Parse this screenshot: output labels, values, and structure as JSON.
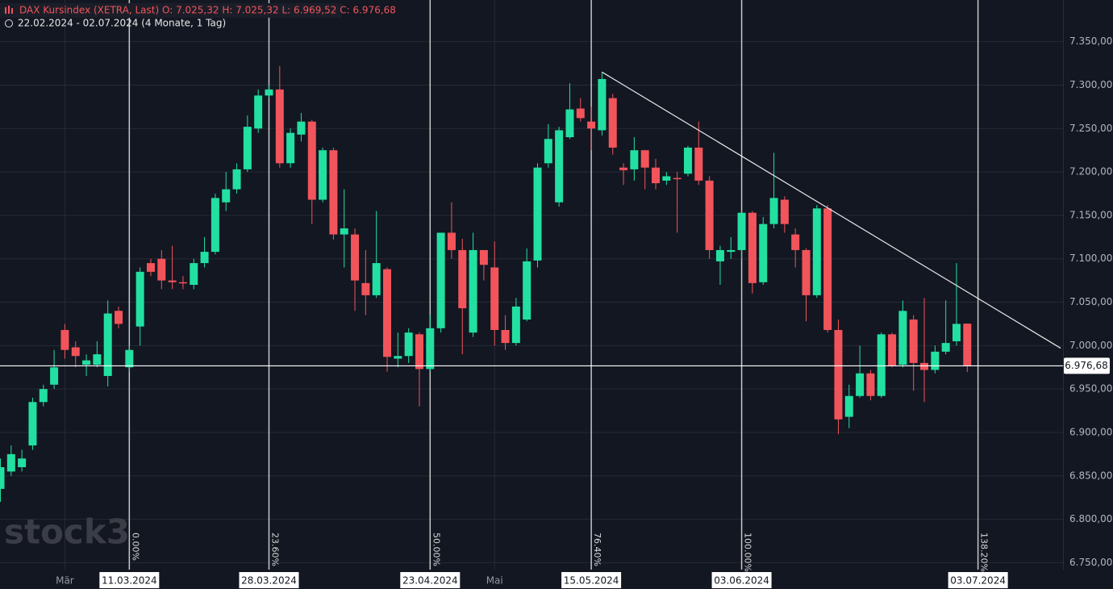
{
  "chart_data": {
    "type": "candlestick",
    "title": "DAX Kursindex (XETRA, Last)  O: 7.025,32  H: 7.025,32  L: 6.969,52  C: 6.976,68",
    "subtitle": "22.02.2024 - 02.07.2024  (4 Monate, 1 Tag)",
    "watermark": "stock3",
    "categories": [
      null,
      null,
      null,
      null,
      null,
      null,
      "Mär",
      null,
      null,
      null,
      null,
      null,
      "11.03.2024",
      null,
      null,
      null,
      null,
      null,
      null,
      null,
      null,
      null,
      null,
      null,
      null,
      "28.03.2024",
      null,
      null,
      null,
      null,
      null,
      null,
      null,
      null,
      null,
      null,
      null,
      null,
      null,
      null,
      "23.04.2024",
      null,
      null,
      null,
      null,
      null,
      "Mai",
      null,
      null,
      null,
      null,
      null,
      null,
      null,
      null,
      "15.05.2024",
      null,
      null,
      null,
      null,
      null,
      null,
      null,
      null,
      null,
      null,
      null,
      null,
      null,
      "03.06.2024",
      null,
      null,
      null,
      null,
      null,
      null,
      null,
      null,
      null,
      null,
      null,
      null,
      null,
      null,
      null,
      null,
      null,
      null,
      null,
      null,
      null,
      "03.07.2024"
    ],
    "fib_labels": [
      null,
      null,
      null,
      null,
      null,
      null,
      null,
      null,
      null,
      null,
      null,
      null,
      "0.00%",
      null,
      null,
      null,
      null,
      null,
      null,
      null,
      null,
      null,
      null,
      null,
      null,
      "23.60%",
      null,
      null,
      null,
      null,
      null,
      null,
      null,
      null,
      null,
      null,
      null,
      null,
      null,
      null,
      "50.00%",
      null,
      null,
      null,
      null,
      null,
      null,
      null,
      null,
      null,
      null,
      null,
      null,
      null,
      null,
      "76.40%",
      null,
      null,
      null,
      null,
      null,
      null,
      null,
      null,
      null,
      null,
      null,
      null,
      null,
      "100.00%",
      null,
      null,
      null,
      null,
      null,
      null,
      null,
      null,
      null,
      null,
      null,
      null,
      null,
      null,
      null,
      null,
      null,
      null,
      null,
      null,
      null,
      "138.20%"
    ],
    "open": [
      6835,
      6855,
      6860,
      6885,
      6935,
      6955,
      7018,
      6998,
      6978,
      6978,
      6965,
      7040,
      6975,
      7022,
      7095,
      7100,
      7075,
      7073,
      7070,
      7095,
      7108,
      7165,
      7180,
      7203,
      7250,
      7288,
      7295,
      7210,
      7243,
      7258,
      7168,
      7225,
      7128,
      7128,
      7072,
      7058,
      7088,
      6985,
      6988,
      7013,
      6973,
      7020,
      7130,
      7110,
      7015,
      7110,
      7090,
      7018,
      7003,
      7030,
      7098,
      7210,
      7165,
      7240,
      7273,
      7258,
      7248,
      7285,
      7205,
      7203,
      7225,
      7205,
      7190,
      7193,
      7198,
      7228,
      7190,
      7097,
      7108,
      7110,
      7153,
      7073,
      7140,
      7168,
      7128,
      7110,
      7058,
      7158,
      7018,
      6918,
      6942,
      6968,
      6942,
      7013,
      6978,
      7030,
      6980,
      6972,
      6993,
      7005,
      7025.32,
      null
    ],
    "high": [
      6870,
      6885,
      6880,
      6940,
      6955,
      6995,
      7025,
      7005,
      6990,
      7005,
      7052,
      7045,
      7000,
      7090,
      7100,
      7110,
      7115,
      7080,
      7100,
      7125,
      7175,
      7200,
      7210,
      7265,
      7295,
      7300,
      7322,
      7250,
      7268,
      7260,
      7228,
      7228,
      7180,
      7135,
      7110,
      7155,
      7090,
      7015,
      7020,
      7015,
      7035,
      7130,
      7165,
      7123,
      7130,
      7110,
      7120,
      7035,
      7055,
      7112,
      7210,
      7255,
      7252,
      7302,
      7285,
      7275,
      7315,
      7290,
      7210,
      7240,
      7225,
      7215,
      7200,
      7200,
      7230,
      7258,
      7195,
      7115,
      7125,
      7155,
      7155,
      7148,
      7222,
      7172,
      7135,
      7112,
      7162,
      7162,
      7030,
      6955,
      7000,
      6972,
      7015,
      7015,
      7052,
      7035,
      7055,
      7000,
      7052,
      7095,
      7025.32,
      null
    ],
    "low": [
      6820,
      6850,
      6855,
      6880,
      6930,
      6950,
      6985,
      6975,
      6965,
      6975,
      6953,
      7020,
      6970,
      7000,
      7080,
      7065,
      7065,
      7065,
      7065,
      7090,
      7105,
      7155,
      7175,
      7200,
      7245,
      7285,
      7205,
      7205,
      7235,
      7140,
      7165,
      7122,
      7090,
      7040,
      7035,
      7055,
      6970,
      6975,
      6980,
      6930,
      6970,
      7015,
      7100,
      6990,
      7010,
      7075,
      7000,
      6995,
      7000,
      7028,
      7090,
      7205,
      7160,
      7238,
      7258,
      7225,
      7242,
      7220,
      7185,
      7190,
      7180,
      7180,
      7185,
      7130,
      7195,
      7185,
      7100,
      7070,
      7100,
      7100,
      7060,
      7070,
      7135,
      7130,
      7090,
      7028,
      7055,
      7015,
      6898,
      6905,
      6940,
      6937,
      6940,
      6975,
      6975,
      6948,
      6935,
      6968,
      6990,
      7000,
      6969.52,
      null
    ],
    "close": [
      6860,
      6875,
      6870,
      6935,
      6950,
      6975,
      6995,
      6988,
      6983,
      6990,
      7037,
      7025,
      6995,
      7085,
      7085,
      7075,
      7073,
      7072,
      7095,
      7108,
      7170,
      7180,
      7203,
      7252,
      7288,
      7295,
      7210,
      7245,
      7258,
      7168,
      7225,
      7128,
      7135,
      7075,
      7058,
      7095,
      6987,
      6988,
      7015,
      6973,
      7020,
      7130,
      7110,
      7043,
      7110,
      7093,
      7018,
      7003,
      7045,
      7097,
      7205,
      7238,
      7248,
      7272,
      7262,
      7250,
      7307,
      7228,
      7202,
      7225,
      7205,
      7187,
      7195,
      7192,
      7228,
      7190,
      7110,
      7110,
      7110,
      7153,
      7072,
      7140,
      7170,
      7140,
      7110,
      7058,
      7158,
      7018,
      6915,
      6942,
      6968,
      6942,
      7013,
      6977,
      7040,
      6980,
      6972,
      6993,
      7003,
      7025,
      6976.68,
      null
    ],
    "up_color": "#22e0a1",
    "down_color": "#f2545b",
    "ylim": [
      6742,
      7398
    ],
    "yticks": [
      {
        "value": 6750,
        "label": "6.750,00"
      },
      {
        "value": 6800,
        "label": "6.800,00"
      },
      {
        "value": 6850,
        "label": "6.850,00"
      },
      {
        "value": 6900,
        "label": "6.900,00"
      },
      {
        "value": 6950,
        "label": "6.950,00"
      },
      {
        "value": 7000,
        "label": "7.000,00"
      },
      {
        "value": 7050,
        "label": "7.050,00"
      },
      {
        "value": 7100,
        "label": "7.100,00"
      },
      {
        "value": 7150,
        "label": "7.150,00"
      },
      {
        "value": 7200,
        "label": "7.200,00"
      },
      {
        "value": 7250,
        "label": "7.250,00"
      },
      {
        "value": 7300,
        "label": "7.300,00"
      },
      {
        "value": 7350,
        "label": "7.350,00"
      }
    ],
    "grid": true,
    "last_price": {
      "value": 6976.68,
      "label": "6.976,68"
    },
    "trendline": {
      "x": [
        56,
        98.7
      ],
      "values": [
        7315,
        6997
      ]
    }
  }
}
